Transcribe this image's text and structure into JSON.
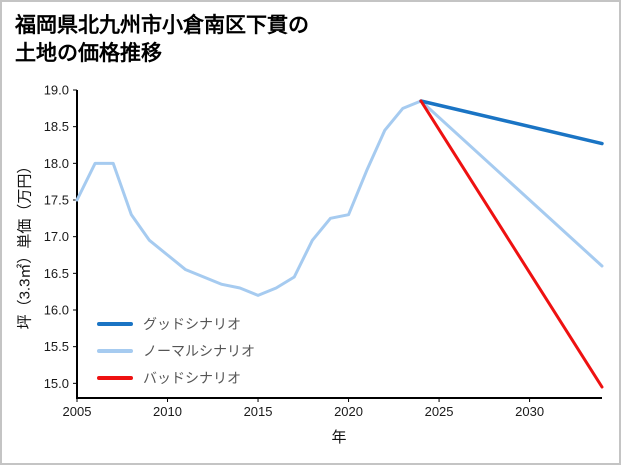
{
  "header": {
    "title_line1": "福岡県北九州市小倉南区下貫の",
    "title_line2": "土地の価格推移"
  },
  "chart_data": {
    "type": "line",
    "title": "福岡県北九州市小倉南区下貫の土地の価格推移",
    "xlabel": "年",
    "ylabel": "坪（3.3㎡）単価（万円）",
    "xlim": [
      2005,
      2034
    ],
    "ylim": [
      14.8,
      19.0
    ],
    "xticks": [
      2005,
      2010,
      2015,
      2020,
      2025,
      2030
    ],
    "yticks": [
      15.0,
      15.5,
      16.0,
      16.5,
      17.0,
      17.5,
      18.0,
      18.5,
      19.0
    ],
    "grid": false,
    "legend_position": "lower-left",
    "axis_color": "#000000",
    "tick_label_color": "#1a1a1a",
    "draw_order": [
      1,
      0,
      2
    ],
    "series": [
      {
        "name": "グッドシナリオ",
        "color": "#1a74c4",
        "width": 3.5,
        "x": [
          2024,
          2034
        ],
        "y": [
          18.85,
          18.27
        ]
      },
      {
        "name": "ノーマルシナリオ",
        "color": "#a6cbf0",
        "width": 3,
        "x": [
          2005,
          2006,
          2007,
          2008,
          2009,
          2010,
          2011,
          2012,
          2013,
          2014,
          2015,
          2016,
          2017,
          2018,
          2019,
          2020,
          2021,
          2022,
          2023,
          2024,
          2034
        ],
        "y": [
          17.5,
          18.0,
          18.0,
          17.3,
          16.95,
          16.75,
          16.55,
          16.45,
          16.35,
          16.3,
          16.2,
          16.3,
          16.45,
          16.95,
          17.25,
          17.3,
          17.9,
          18.45,
          18.75,
          18.85,
          16.6
        ]
      },
      {
        "name": "バッドシナリオ",
        "color": "#ee1111",
        "width": 3,
        "x": [
          2024,
          2034
        ],
        "y": [
          18.85,
          14.95
        ]
      }
    ]
  }
}
